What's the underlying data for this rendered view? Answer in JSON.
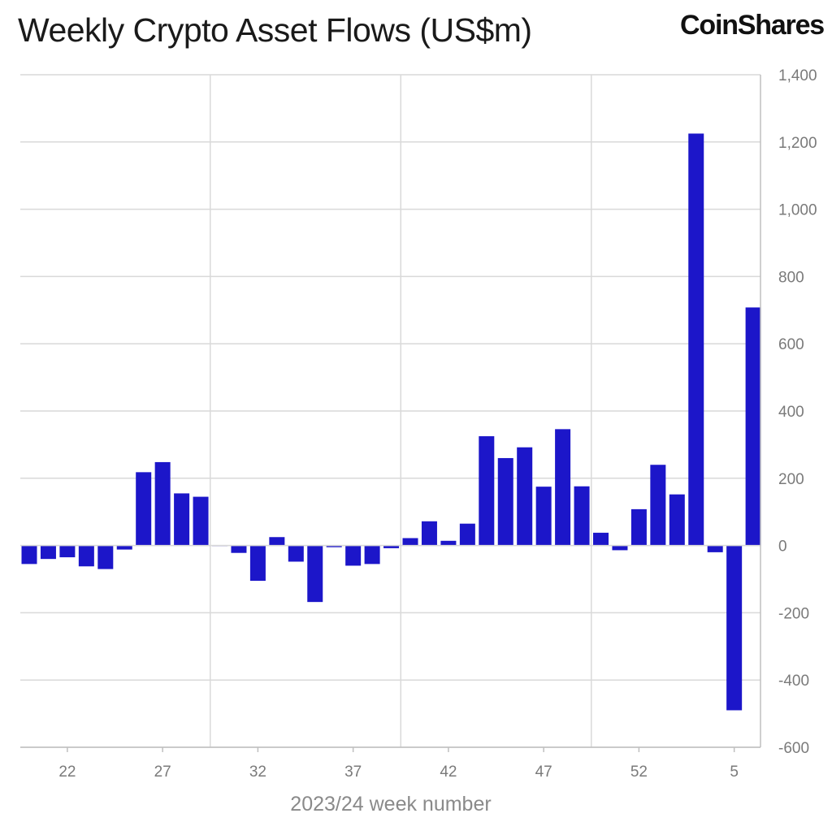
{
  "title": "Weekly Crypto Asset Flows (US$m)",
  "brand": "CoinShares",
  "colors": {
    "bar": "#1c16c9",
    "grid": "#d9d9d9",
    "axis": "#bfbfbf",
    "tick_text": "#7a7a7a"
  },
  "chart_data": {
    "type": "bar",
    "title": "Weekly Crypto Asset Flows (US$m)",
    "xlabel": "2023/24 week number",
    "ylabel": "",
    "ylim": [
      -600,
      1400
    ],
    "y_ticks": [
      1400,
      1200,
      1000,
      800,
      600,
      400,
      200,
      0,
      -200,
      -400,
      -600
    ],
    "y_tick_labels": [
      "1,400",
      "1,200",
      "1,000",
      "800",
      "600",
      "400",
      "200",
      "0",
      "-200",
      "-400",
      "-600"
    ],
    "y_axis_side": "right",
    "x_tick_labels": [
      "22",
      "27",
      "32",
      "37",
      "42",
      "47",
      "52",
      "5"
    ],
    "grid": true,
    "legend": "none",
    "categories": [
      "20",
      "21",
      "22",
      "23",
      "24",
      "25",
      "26",
      "27",
      "28",
      "29",
      "30",
      "31",
      "32",
      "33",
      "34",
      "35",
      "36",
      "37",
      "38",
      "39",
      "40",
      "41",
      "42",
      "43",
      "44",
      "45",
      "46",
      "47",
      "48",
      "49",
      "50",
      "51",
      "52",
      "1",
      "2",
      "3",
      "4",
      "5",
      "6"
    ],
    "values": [
      -55,
      -40,
      -35,
      -62,
      -70,
      -12,
      218,
      248,
      155,
      145,
      0,
      -22,
      -105,
      25,
      -48,
      -168,
      -5,
      -60,
      -55,
      -8,
      22,
      72,
      14,
      65,
      325,
      260,
      292,
      175,
      346,
      176,
      38,
      -14,
      108,
      240,
      152,
      1225,
      -20,
      -490,
      708
    ]
  }
}
